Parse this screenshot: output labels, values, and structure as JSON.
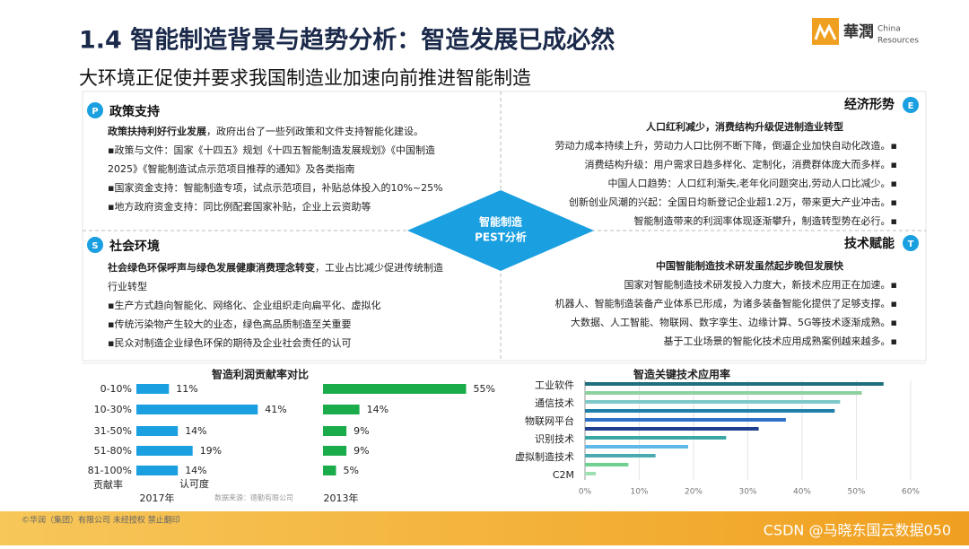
{
  "header": {
    "title": "1.4 智能制造背景与趋势分析：智造发展已成必然",
    "subtitle": "大环境正促使并要求我国制造业加速向前推进智能制造"
  },
  "logo": {
    "mark": "華潤",
    "line1": "China",
    "line2": "Resources"
  },
  "pest": {
    "center": [
      "智能制造",
      "PEST分析"
    ],
    "quadrants": [
      {
        "icon": "P",
        "title": "政策支持",
        "lead": [
          "政策扶持利好行业发展",
          "，政府出台了一些列政策和文件支持智能化建设。"
        ],
        "lines": [
          "▪政策与文件：国家《十四五》规划《十四五智能制造发展规划》《中国制造",
          "2025》《智能制造试点示范项目推荐的通知》及各类指南",
          "▪国家资金支持：智能制造专项，试点示范项目，补贴总体投入的10%~25%",
          "▪地方政府资金支持：同比例配套国家补贴，企业上云资助等"
        ]
      },
      {
        "icon": "E",
        "title": "经济形势",
        "lead": [
          "人口红利减少，消费结构升级促进制造业转型",
          ""
        ],
        "lines": [
          "劳动力成本持续上升，劳动力人口比例不断下降，倒逼企业加快自动化改造。▪",
          "消费结构升级：用户需求日趋多样化、定制化，消费群体庞大而多样。▪",
          "中国人口趋势：人口红利渐失,老年化问题突出,劳动人口比减少。▪",
          "创新创业风潮的兴起：全国日均新登记企业超1.2万，带来更大产业冲击。▪",
          "智能制造带来的利润率体现逐渐攀升，制造转型势在必行。▪"
        ]
      },
      {
        "icon": "S",
        "title": "社会环境",
        "lead": [
          "社会绿色环保呼声与绿色发展健康消费理念转变",
          "，工业占比减少促进传统制造"
        ],
        "lines": [
          "行业转型",
          "▪生产方式趋向智能化、网络化、企业组织走向扁平化、虚拟化",
          "▪传统污染物产生较大的业态，绿色高品质制造至关重要",
          "▪民众对制造企业绿色环保的期待及企业社会责任的认可"
        ]
      },
      {
        "icon": "T",
        "title": "技术赋能",
        "lead": [
          "中国智能制造技术研发虽然起步晚但发展快",
          ""
        ],
        "lines": [
          "国家对智能制造技术研发投入力度大，新技术应用正在加速。▪",
          "机器人、智能制造装备产业体系已形成，为诸多装备智能化提供了足够支撑。▪",
          "大数据、人工智能、物联网、数字孪生、边缘计算、5G等技术逐渐成熟。▪",
          "基于工业场景的智能化技术应用成熟案例越来越多。▪"
        ]
      }
    ]
  },
  "chart_data": [
    {
      "type": "bar",
      "title": "智造利润贡献率对比",
      "categories": [
        "0-10%",
        "10-30%",
        "31-50%",
        "51-80%",
        "81-100%"
      ],
      "series": [
        {
          "name": "2017年",
          "color": "#1a9fe0",
          "values": [
            11,
            41,
            14,
            19,
            14
          ],
          "value_labels": [
            "11%",
            "41%",
            "14%",
            "19%",
            "14%"
          ]
        },
        {
          "name": "2013年",
          "color": "#1aab4b",
          "values": [
            55,
            14,
            9,
            9,
            5
          ],
          "value_labels": [
            "55%",
            "14%",
            "9%",
            "9%",
            "5%"
          ]
        }
      ],
      "annotations": [
        "贡献率",
        "认可度"
      ],
      "source": "数据来源：德勤有限公司"
    },
    {
      "type": "hbar",
      "title": "智造关键技术应用率",
      "categories": [
        "工业软件",
        null,
        "通信技术",
        null,
        "物联网平台",
        null,
        "识别技术",
        null,
        "虚拟制造技术",
        null,
        "C2M"
      ],
      "values": [
        55,
        51,
        47,
        46,
        37,
        32,
        26,
        19,
        13,
        8,
        2
      ],
      "colors": [
        "#1f6f7f",
        "#8fd19e",
        "#7fc8c8",
        "#1e7fa8",
        "#2e6fc8",
        "#1f3f8f",
        "#3aa7a7",
        "#5fb8e8",
        "#4aaab0",
        "#70d090",
        "#9fe0b0"
      ],
      "xlim": [
        0,
        60
      ],
      "xticks": [
        {
          "value": 0,
          "label": "0%"
        },
        {
          "value": 10,
          "label": "10%"
        },
        {
          "value": 20,
          "label": "20%"
        },
        {
          "value": 30,
          "label": "30%"
        },
        {
          "value": 40,
          "label": "40%"
        },
        {
          "value": 50,
          "label": "50%"
        },
        {
          "value": 60,
          "label": "60%"
        }
      ],
      "grid": true
    }
  ],
  "footer": {
    "copyright": "©华润（集团）有限公司 未经授权 禁止翻印",
    "watermark": "CSDN @马晓东国云数据050"
  }
}
